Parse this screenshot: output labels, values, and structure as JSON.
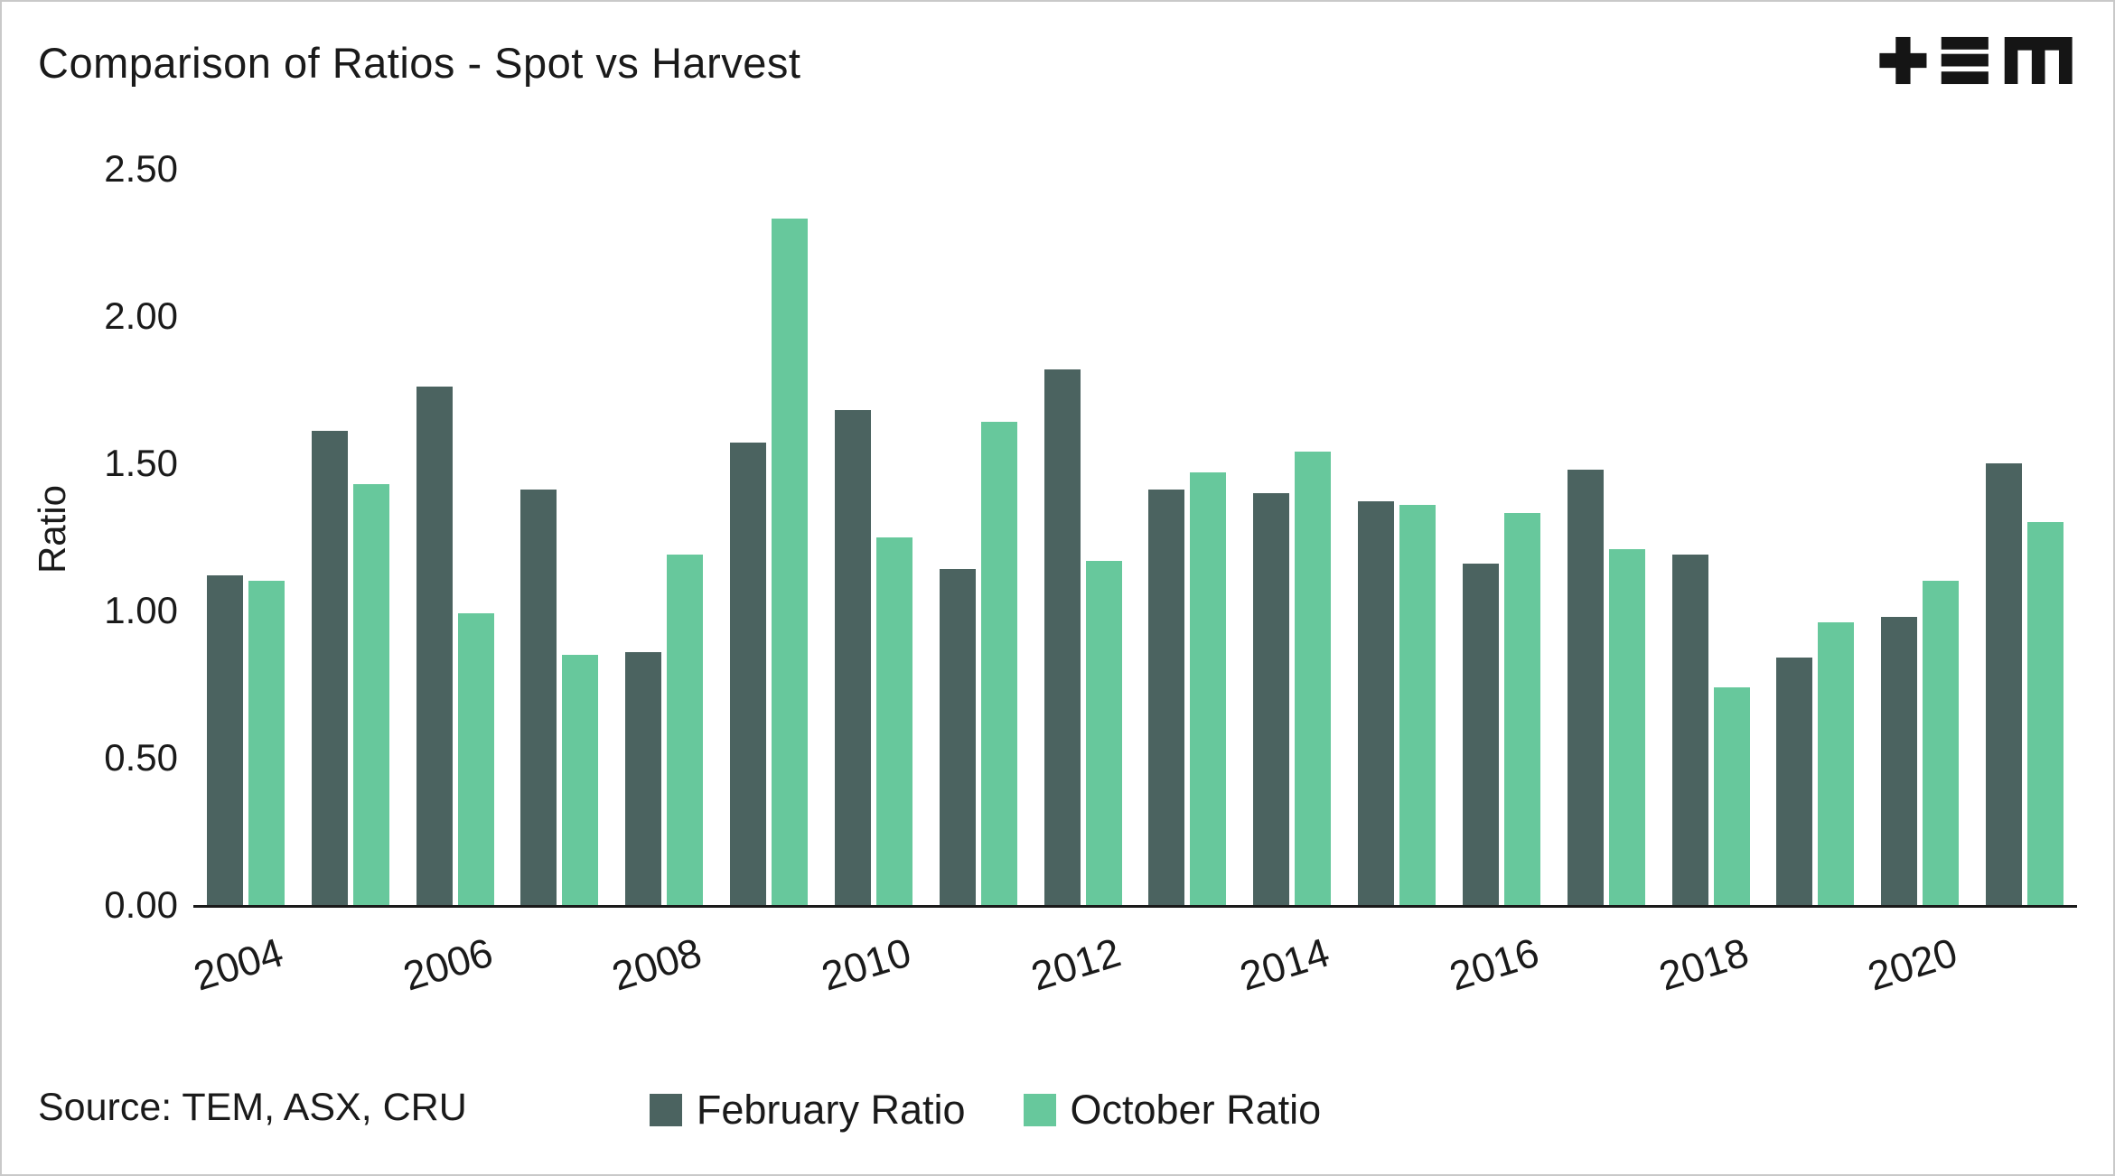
{
  "title": "Comparison of Ratios - Spot vs Harvest",
  "source": "Source: TEM, ASX, CRU",
  "logo": "TEM",
  "colors": {
    "february": "#4b6360",
    "october": "#67c89c",
    "axis": "#1a1a1a",
    "border": "#c9c9c9"
  },
  "chart_data": {
    "type": "bar",
    "title": "Comparison of Ratios - Spot vs Harvest",
    "xlabel": "",
    "ylabel": "Ratio",
    "ylim": [
      0,
      2.5
    ],
    "yticks": [
      0,
      0.5,
      1,
      1.5,
      2,
      2.5
    ],
    "ytick_labels": [
      "0.00",
      "0.50",
      "1.00",
      "1.50",
      "2.00",
      "2.50"
    ],
    "categories": [
      "2004",
      "2005",
      "2006",
      "2007",
      "2008",
      "2009",
      "2010",
      "2011",
      "2012",
      "2013",
      "2014",
      "2015",
      "2016",
      "2017",
      "2018",
      "2019",
      "2020",
      "2021"
    ],
    "xtick_labels": [
      "2004",
      "2006",
      "2008",
      "2010",
      "2012",
      "2014",
      "2016",
      "2018",
      "2020"
    ],
    "grid": false,
    "legend_position": "bottom",
    "series": [
      {
        "name": "February Ratio",
        "color": "#4b6360",
        "values": [
          1.12,
          1.61,
          1.76,
          1.41,
          0.86,
          1.57,
          1.68,
          1.14,
          1.82,
          1.41,
          1.4,
          1.37,
          1.16,
          1.48,
          1.19,
          0.84,
          0.98,
          1.5
        ]
      },
      {
        "name": "October Ratio",
        "color": "#67c89c",
        "values": [
          1.1,
          1.43,
          0.99,
          0.85,
          1.19,
          2.33,
          1.25,
          1.64,
          1.17,
          1.47,
          1.54,
          1.36,
          1.33,
          1.21,
          0.74,
          0.96,
          1.1,
          1.3
        ]
      }
    ]
  }
}
